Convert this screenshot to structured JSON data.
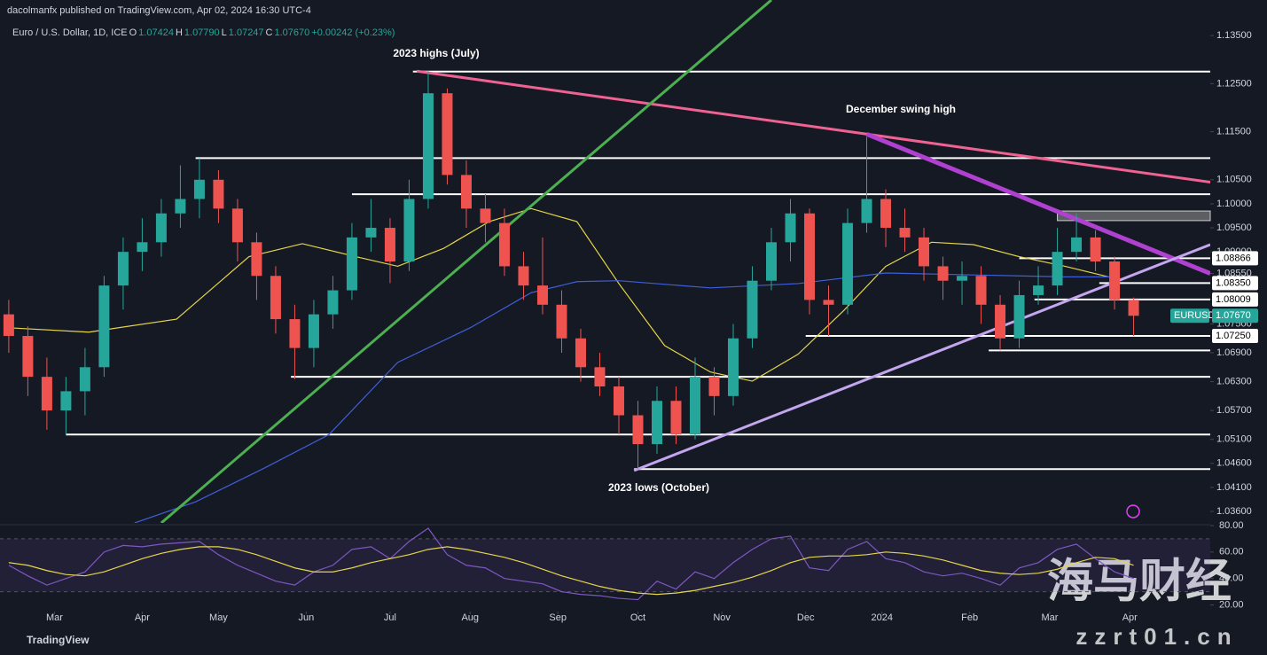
{
  "header": {
    "publisher": "dacolmanfx published on TradingView.com, Apr 02, 2024 16:30 UTC-4",
    "symbol": "Euro / U.S. Dollar, 1D, ICE",
    "ohlc": [
      {
        "key": "O",
        "value": "1.07424"
      },
      {
        "key": "H",
        "value": "1.07790"
      },
      {
        "key": "L",
        "value": "1.07247"
      },
      {
        "key": "C",
        "value": "1.07670"
      }
    ],
    "change": "+0.00242 (+0.23%)"
  },
  "chart_data": [
    {
      "type": "candlestick",
      "x": [
        0,
        5,
        10,
        15,
        20,
        25,
        30,
        35,
        40,
        45,
        50,
        55,
        60,
        65,
        70,
        75,
        80,
        85,
        90,
        95,
        100,
        105,
        110,
        115,
        120,
        125,
        130,
        135,
        140,
        145,
        150,
        155,
        160,
        165,
        170,
        175,
        180,
        185,
        190,
        195,
        200,
        205,
        210,
        215,
        220,
        225,
        230,
        235,
        240,
        245,
        250,
        255,
        260,
        265,
        270,
        275,
        280,
        285,
        290,
        295
      ],
      "open": [
        1.077,
        1.0725,
        1.064,
        1.057,
        1.061,
        1.066,
        1.083,
        1.09,
        1.092,
        1.098,
        1.101,
        1.105,
        1.099,
        1.092,
        1.085,
        1.076,
        1.07,
        1.077,
        1.082,
        1.093,
        1.095,
        1.088,
        1.101,
        1.123,
        1.106,
        1.099,
        1.096,
        1.087,
        1.083,
        1.079,
        1.072,
        1.066,
        1.062,
        1.056,
        1.05,
        1.059,
        1.052,
        1.064,
        1.06,
        1.072,
        1.084,
        1.092,
        1.098,
        1.08,
        1.079,
        1.096,
        1.101,
        1.095,
        1.093,
        1.087,
        1.084,
        1.085,
        1.079,
        1.072,
        1.081,
        1.083,
        1.09,
        1.093,
        1.088,
        1.08
      ],
      "high": [
        1.08,
        1.0745,
        1.068,
        1.064,
        1.07,
        1.085,
        1.093,
        1.097,
        1.101,
        1.108,
        1.1095,
        1.107,
        1.101,
        1.094,
        1.087,
        1.079,
        1.08,
        1.085,
        1.096,
        1.101,
        1.097,
        1.105,
        1.1276,
        1.124,
        1.109,
        1.102,
        1.099,
        1.09,
        1.093,
        1.082,
        1.074,
        1.069,
        1.064,
        1.059,
        1.062,
        1.062,
        1.068,
        1.066,
        1.075,
        1.087,
        1.095,
        1.101,
        1.099,
        1.083,
        1.099,
        1.1139,
        1.103,
        1.099,
        1.095,
        1.089,
        1.088,
        1.087,
        1.081,
        1.084,
        1.087,
        1.095,
        1.098,
        1.0945,
        1.089,
        1.0805
      ],
      "low": [
        1.069,
        1.06,
        1.053,
        1.052,
        1.056,
        1.064,
        1.078,
        1.086,
        1.089,
        1.095,
        1.097,
        1.096,
        1.088,
        1.08,
        1.073,
        1.0635,
        1.066,
        1.074,
        1.08,
        1.09,
        1.0835,
        1.086,
        1.099,
        1.104,
        1.095,
        1.092,
        1.085,
        1.08,
        1.077,
        1.069,
        1.063,
        1.06,
        1.052,
        1.0448,
        1.048,
        1.05,
        1.051,
        1.056,
        1.058,
        1.07,
        1.082,
        1.088,
        1.077,
        1.0725,
        1.077,
        1.094,
        1.091,
        1.09,
        1.084,
        1.08,
        1.079,
        1.075,
        1.0695,
        1.07,
        1.079,
        1.081,
        1.088,
        1.086,
        1.078,
        1.0725
      ],
      "close": [
        1.0725,
        1.064,
        1.057,
        1.061,
        1.066,
        1.083,
        1.09,
        1.092,
        1.098,
        1.101,
        1.105,
        1.099,
        1.092,
        1.085,
        1.076,
        1.07,
        1.077,
        1.082,
        1.093,
        1.095,
        1.088,
        1.101,
        1.123,
        1.106,
        1.099,
        1.096,
        1.087,
        1.083,
        1.079,
        1.072,
        1.066,
        1.062,
        1.056,
        1.05,
        1.059,
        1.052,
        1.064,
        1.06,
        1.072,
        1.084,
        1.092,
        1.098,
        1.08,
        1.079,
        1.096,
        1.101,
        1.095,
        1.093,
        1.087,
        1.084,
        1.085,
        1.079,
        1.072,
        1.081,
        1.083,
        1.09,
        1.093,
        1.088,
        1.08,
        1.0767
      ],
      "up_color": "#26a69a",
      "down_color": "#ef5350",
      "xlim": [
        -2.3,
        315.1
      ],
      "xticks": [
        {
          "value": 12,
          "label": "Mar"
        },
        {
          "value": 35,
          "label": "Apr"
        },
        {
          "value": 55,
          "label": "May"
        },
        {
          "value": 78,
          "label": "Jun"
        },
        {
          "value": 100,
          "label": "Jul"
        },
        {
          "value": 121,
          "label": "Aug"
        },
        {
          "value": 144,
          "label": "Sep"
        },
        {
          "value": 165,
          "label": "Oct"
        },
        {
          "value": 187,
          "label": "Nov"
        },
        {
          "value": 209,
          "label": "Dec"
        },
        {
          "value": 229,
          "label": "2024"
        },
        {
          "value": 252,
          "label": "Feb"
        },
        {
          "value": 273,
          "label": "Mar"
        },
        {
          "value": 294,
          "label": "Apr"
        }
      ],
      "ylim": [
        1.0336,
        1.1424
      ],
      "yticks": [
        {
          "value": 1.135,
          "label": "1.13500"
        },
        {
          "value": 1.125,
          "label": "1.12500"
        },
        {
          "value": 1.115,
          "label": "1.11500"
        },
        {
          "value": 1.105,
          "label": "1.10500"
        },
        {
          "value": 1.1,
          "label": "1.10000"
        },
        {
          "value": 1.095,
          "label": "1.09500"
        },
        {
          "value": 1.09,
          "label": "1.09000"
        },
        {
          "value": 1.0855,
          "label": "1.08550"
        },
        {
          "value": 1.075,
          "label": "1.07500"
        },
        {
          "value": 1.069,
          "label": "1.06900"
        },
        {
          "value": 1.063,
          "label": "1.06300"
        },
        {
          "value": 1.057,
          "label": "1.05700"
        },
        {
          "value": 1.051,
          "label": "1.05100"
        },
        {
          "value": 1.046,
          "label": "1.04600"
        },
        {
          "value": 1.041,
          "label": "1.04100"
        },
        {
          "value": 1.036,
          "label": "1.03600"
        }
      ],
      "grid": false,
      "levels": [
        {
          "value": 1.1275,
          "start": 106
        },
        {
          "value": 1.1095,
          "start": 49
        },
        {
          "value": 1.102,
          "start": 90
        },
        {
          "value": 1.08866,
          "start": 265,
          "label": "1.08866"
        },
        {
          "value": 1.0835,
          "start": 286,
          "label": "1.08350"
        },
        {
          "value": 1.08009,
          "start": 269,
          "label": "1.08009"
        },
        {
          "value": 1.0725,
          "start": 209,
          "label": "1.07250"
        },
        {
          "value": 1.0695,
          "start": 257
        },
        {
          "value": 1.064,
          "start": 74
        },
        {
          "value": 1.052,
          "start": 15
        },
        {
          "value": 1.0448,
          "start": 164
        }
      ],
      "zone": {
        "low": 1.0965,
        "high": 1.0985,
        "start": 275
      },
      "trendlines": [
        {
          "color": "#f06292",
          "points": [
            [
              107,
              1.1276
            ],
            [
              315.1,
              1.1045
            ]
          ]
        },
        {
          "color": "#b040d0",
          "points": [
            [
              225,
              1.1145
            ],
            [
              315.1,
              1.0855
            ]
          ]
        },
        {
          "color": "#c3a6ee",
          "points": [
            [
              164,
              1.0445
            ],
            [
              315.1,
              1.0915
            ]
          ]
        },
        {
          "color": "#4caf50",
          "points": [
            [
              40,
              1.0336
            ],
            [
              200,
              1.1424
            ]
          ]
        }
      ],
      "moving_averages": [
        {
          "color": "#e6d54a",
          "x": [
            0,
            21,
            44,
            63,
            77,
            91,
            102,
            114,
            126,
            137,
            149,
            160,
            172,
            184,
            195,
            207,
            219,
            230,
            242,
            253,
            265,
            277,
            291
          ],
          "values": [
            1.0742,
            1.0733,
            1.076,
            1.089,
            1.0917,
            1.089,
            1.087,
            1.0907,
            1.0963,
            1.099,
            1.0963,
            1.0834,
            1.0705,
            1.065,
            1.0631,
            1.0687,
            1.0778,
            1.087,
            1.092,
            1.0915,
            1.089,
            1.087,
            1.0843
          ]
        },
        {
          "color": "#3f5fd8",
          "x": [
            33,
            49,
            67,
            84,
            102,
            121,
            137,
            149,
            160,
            184,
            207,
            230,
            253,
            277,
            291
          ],
          "values": [
            1.0336,
            1.038,
            1.045,
            1.052,
            1.067,
            1.0742,
            1.0815,
            1.0838,
            1.084,
            1.0825,
            1.0834,
            1.0856,
            1.0852,
            1.0848,
            1.0848
          ]
        }
      ],
      "annotations": [
        "2023 highs (July)",
        "December swing high",
        "2023 lows (October)"
      ],
      "last_price": {
        "name": "EURUSD",
        "value": 1.0767,
        "label": "1.07670"
      }
    },
    {
      "type": "line",
      "values": [
        50,
        42,
        35,
        40,
        45,
        60,
        65,
        64,
        66,
        67,
        68,
        58,
        50,
        44,
        38,
        35,
        45,
        50,
        62,
        64,
        55,
        68,
        78,
        58,
        50,
        48,
        40,
        38,
        36,
        30,
        28,
        27,
        25,
        24,
        38,
        32,
        45,
        40,
        52,
        62,
        70,
        72,
        48,
        46,
        62,
        68,
        55,
        52,
        45,
        42,
        44,
        40,
        35,
        48,
        52,
        62,
        66,
        55,
        45,
        40
      ],
      "ma": [
        52,
        50,
        46,
        43,
        42,
        45,
        50,
        55,
        59,
        62,
        64,
        64,
        62,
        58,
        53,
        48,
        45,
        45,
        48,
        52,
        55,
        58,
        62,
        64,
        62,
        59,
        56,
        52,
        47,
        42,
        38,
        34,
        31,
        29,
        28,
        29,
        31,
        34,
        37,
        41,
        46,
        52,
        56,
        57,
        57,
        58,
        60,
        59,
        57,
        54,
        50,
        46,
        44,
        43,
        44,
        47,
        52,
        56,
        55,
        50
      ],
      "color": "#7e57c2",
      "ma_color": "#e6d54a",
      "ylim": [
        15,
        82
      ],
      "yticks": [
        {
          "value": 80,
          "label": "80.00"
        },
        {
          "value": 60,
          "label": "60.00"
        },
        {
          "value": 40,
          "label": "40.00"
        },
        {
          "value": 20,
          "label": "20.00"
        }
      ],
      "band": [
        30,
        70
      ]
    }
  ],
  "footer": {
    "brand": "TradingView"
  },
  "watermark": {
    "title": "海马财经",
    "site": "zzrt01.cn"
  }
}
